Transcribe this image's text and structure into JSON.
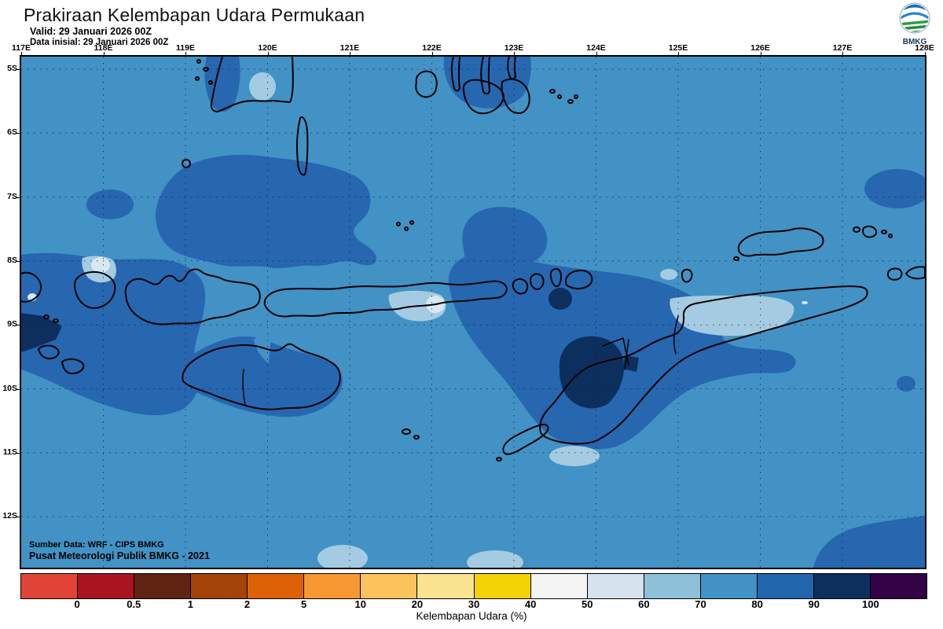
{
  "header": {
    "title": "Prakiraan Kelembapan Udara Permukaan",
    "valid": "Valid: 29 Januari 2026 00Z",
    "init": "Data inisial: 29 Januari 2026 00Z"
  },
  "logo": {
    "label": "BMKG"
  },
  "map": {
    "lon_labels": [
      "117E",
      "118E",
      "119E",
      "120E",
      "121E",
      "122E",
      "123E",
      "124E",
      "125E",
      "126E",
      "127E",
      "128E"
    ],
    "lat_labels": [
      "5S",
      "6S",
      "7S",
      "8S",
      "9S",
      "10S",
      "11S",
      "12S"
    ],
    "source_line1": "Sumber Data: WRF - CIPS BMKG",
    "source_line2": "Pusat Meteorologi Publik BMKG - 2021",
    "colors": {
      "base_70_80": "#4292c5",
      "region_80_90": "#2767b0",
      "region_90_100": "#0d2f5e",
      "region_60_70": "#a5cbe2",
      "region_50_60": "#d8e7f2",
      "coastline": "#000000",
      "grid": "#141420"
    }
  },
  "colorbar": {
    "caption": "Kelembapan Udara (%)",
    "tick_labels": [
      "0",
      "0.5",
      "1",
      "2",
      "5",
      "10",
      "20",
      "30",
      "40",
      "50",
      "60",
      "70",
      "80",
      "90",
      "100"
    ],
    "segment_colors": [
      "#e04437",
      "#a81420",
      "#5f2412",
      "#a34209",
      "#dd6207",
      "#f79833",
      "#fcc35c",
      "#fbe491",
      "#f3d206",
      "#f3f3f3",
      "#d5e3ee",
      "#8fc0da",
      "#4292c5",
      "#2166ac",
      "#0d2f5e",
      "#330345"
    ]
  }
}
